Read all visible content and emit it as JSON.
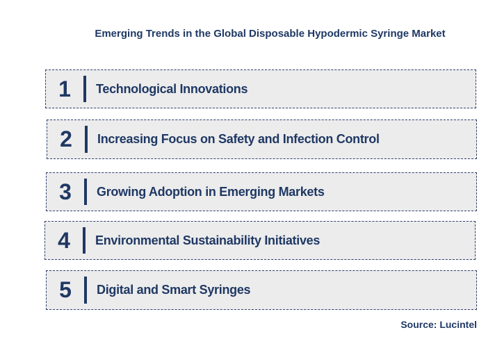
{
  "title": "Emerging Trends in the Global Disposable Hypodermic Syringe Market",
  "trends": [
    {
      "number": "1",
      "label": "Technological Innovations"
    },
    {
      "number": "2",
      "label": "Increasing Focus on Safety and Infection Control"
    },
    {
      "number": "3",
      "label": "Growing Adoption in Emerging Markets"
    },
    {
      "number": "4",
      "label": "Environmental Sustainability Initiatives"
    },
    {
      "number": "5",
      "label": "Digital and Smart Syringes"
    }
  ],
  "source": "Source: Lucintel",
  "colors": {
    "text": "#1f3864",
    "box_background": "#ececec",
    "box_border": "#2e3f6e"
  }
}
